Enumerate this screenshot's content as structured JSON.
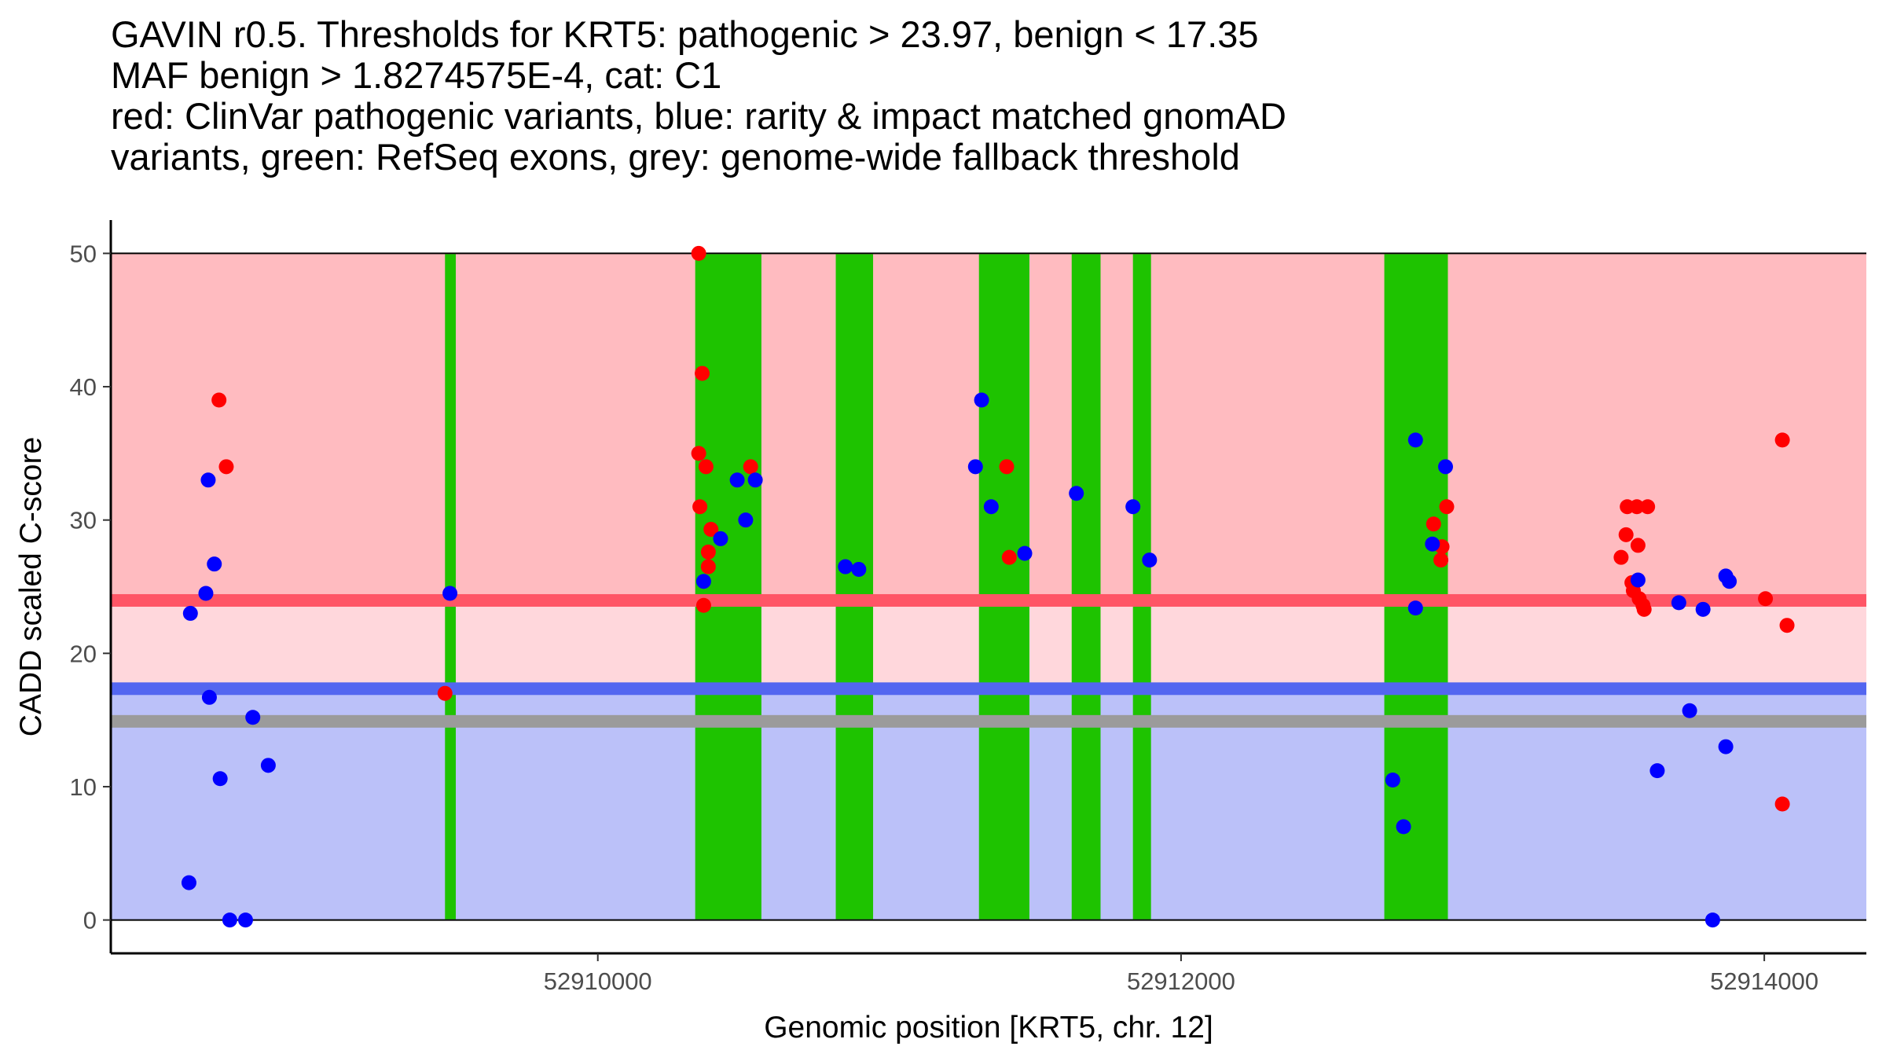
{
  "chart_data": {
    "type": "scatter",
    "title_lines": [
      "GAVIN r0.5. Thresholds for KRT5: pathogenic > 23.97, benign < 17.35",
      "MAF benign > 1.8274575E-4, cat: C1",
      "red: ClinVar pathogenic variants, blue: rarity & impact matched gnomAD",
      "variants, green: RefSeq exons, grey: genome-wide fallback threshold"
    ],
    "xlabel": "Genomic position [KRT5, chr. 12]",
    "ylabel": "CADD scaled C-score",
    "xlim": [
      52908330,
      52914350
    ],
    "ylim": [
      -2.5,
      52.5
    ],
    "xticks": [
      52910000,
      52912000,
      52914000
    ],
    "xtick_labels": [
      "52910000",
      "52912000",
      "52914000"
    ],
    "yticks": [
      0,
      10,
      20,
      30,
      40,
      50
    ],
    "ytick_labels": [
      "0",
      "10",
      "20",
      "30",
      "40",
      "50"
    ],
    "grid": false,
    "legend": "none",
    "thresholds": {
      "pathogenic": 23.97,
      "benign": 17.35,
      "genome_wide_fallback": 14.9
    },
    "regions": {
      "pathogenic_zone": [
        23.97,
        50
      ],
      "uncertain_zone": [
        17.35,
        23.97
      ],
      "benign_zone": [
        0,
        17.35
      ]
    },
    "colors": {
      "pathogenic_zone": "#FFBBC0",
      "uncertain_zone": "#FFD7DC",
      "benign_zone": "#BBC1F9",
      "pathogenic_line": "#FF5566",
      "benign_line": "#5366F0",
      "fallback_line": "#9B9B9B",
      "exon": "#1EC300",
      "clinvar": "#FF0000",
      "gnomad": "#0000FF"
    },
    "exons": [
      [
        52909476,
        52909513
      ],
      [
        52910334,
        52910561
      ],
      [
        52910816,
        52910944
      ],
      [
        52911307,
        52911480
      ],
      [
        52911625,
        52911724
      ],
      [
        52911835,
        52911897
      ],
      [
        52912697,
        52912915
      ]
    ],
    "series": [
      {
        "name": "ClinVar pathogenic variants",
        "color": "red",
        "points": [
          [
            52908701,
            39
          ],
          [
            52908726,
            34
          ],
          [
            52909476,
            17
          ],
          [
            52910346,
            50
          ],
          [
            52910358,
            41
          ],
          [
            52910346,
            35
          ],
          [
            52910371,
            34
          ],
          [
            52910350,
            31
          ],
          [
            52910388,
            29.3
          ],
          [
            52910379,
            27.6
          ],
          [
            52910379,
            26.5
          ],
          [
            52910363,
            23.6
          ],
          [
            52910524,
            34
          ],
          [
            52911402,
            34
          ],
          [
            52911411,
            27.2
          ],
          [
            52912911,
            31
          ],
          [
            52912866,
            29.7
          ],
          [
            52912895,
            28
          ],
          [
            52912891,
            27
          ],
          [
            52913530,
            31
          ],
          [
            52913563,
            31
          ],
          [
            52913600,
            31
          ],
          [
            52913526,
            28.9
          ],
          [
            52913567,
            28.1
          ],
          [
            52913509,
            27.2
          ],
          [
            52913546,
            25.3
          ],
          [
            52913551,
            24.7
          ],
          [
            52913571,
            24.1
          ],
          [
            52913584,
            23.6
          ],
          [
            52913588,
            23.3
          ],
          [
            52914004,
            24.1
          ],
          [
            52914078,
            22.1
          ],
          [
            52914062,
            36
          ],
          [
            52914062,
            8.7
          ]
        ]
      },
      {
        "name": "rarity & impact matched gnomAD variants",
        "color": "blue",
        "points": [
          [
            52908664,
            33
          ],
          [
            52908685,
            26.7
          ],
          [
            52908656,
            24.5
          ],
          [
            52908603,
            23
          ],
          [
            52908668,
            16.7
          ],
          [
            52908817,
            15.2
          ],
          [
            52908705,
            10.6
          ],
          [
            52908870,
            11.6
          ],
          [
            52908598,
            2.8
          ],
          [
            52908738,
            0
          ],
          [
            52908792,
            0
          ],
          [
            52909493,
            24.5
          ],
          [
            52910363,
            25.4
          ],
          [
            52910421,
            28.6
          ],
          [
            52910478,
            33
          ],
          [
            52910540,
            33
          ],
          [
            52910507,
            30
          ],
          [
            52910849,
            26.5
          ],
          [
            52910895,
            26.3
          ],
          [
            52911316,
            39
          ],
          [
            52911295,
            34
          ],
          [
            52911349,
            31
          ],
          [
            52911464,
            27.5
          ],
          [
            52911641,
            32
          ],
          [
            52911835,
            31
          ],
          [
            52911892,
            27
          ],
          [
            52912804,
            36
          ],
          [
            52912907,
            34
          ],
          [
            52912862,
            28.2
          ],
          [
            52912804,
            23.4
          ],
          [
            52912726,
            10.5
          ],
          [
            52912763,
            7
          ],
          [
            52913567,
            25.5
          ],
          [
            52913707,
            23.8
          ],
          [
            52913790,
            23.3
          ],
          [
            52913868,
            25.8
          ],
          [
            52913880,
            25.4
          ],
          [
            52913744,
            15.7
          ],
          [
            52913633,
            11.2
          ],
          [
            52913868,
            13
          ],
          [
            52913823,
            0
          ]
        ]
      }
    ]
  }
}
